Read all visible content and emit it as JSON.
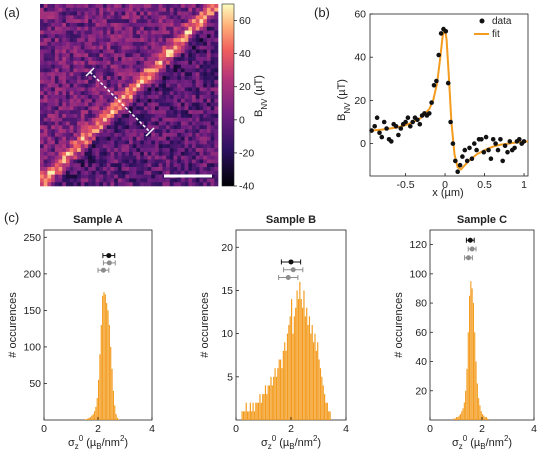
{
  "panels": {
    "a": {
      "label": "(a)",
      "colorbar": {
        "label_main": "B",
        "label_sub": "NV",
        "label_unit": " (µT)",
        "ticks": [
          "60",
          "40",
          "20",
          "0",
          "-20",
          "-40"
        ],
        "tick_values": [
          60,
          40,
          20,
          0,
          -20,
          -40
        ],
        "range": [
          -40,
          70
        ]
      }
    },
    "b": {
      "label": "(b)",
      "ylabel_main": "B",
      "ylabel_sub": "NV",
      "ylabel_unit": " (µT)",
      "xlabel": "x (µm)",
      "legend": {
        "data": "data",
        "fit": "fit"
      }
    },
    "c": {
      "label": "(c)",
      "titles": [
        "Sample A",
        "Sample B",
        "Sample C"
      ]
    }
  },
  "colors": {
    "orange": "#f39c1f",
    "data_black": "#111111",
    "gray": "#8c8c8c"
  },
  "chart_data": [
    {
      "id": "linecut",
      "type": "scatter",
      "xlim": [
        -0.95,
        1.05
      ],
      "ylim": [
        -15,
        60
      ],
      "xticks": [
        "-0.5",
        "0",
        "0.5",
        "1"
      ],
      "xtick_values": [
        -0.5,
        0,
        0.5,
        1
      ],
      "yticks": [
        "60",
        "40",
        "20",
        "0"
      ],
      "ytick_values": [
        60,
        40,
        20,
        0
      ],
      "series": [
        {
          "name": "data",
          "x": [
            -0.93,
            -0.89,
            -0.86,
            -0.83,
            -0.8,
            -0.77,
            -0.74,
            -0.71,
            -0.68,
            -0.65,
            -0.62,
            -0.59,
            -0.56,
            -0.53,
            -0.5,
            -0.47,
            -0.44,
            -0.41,
            -0.38,
            -0.35,
            -0.32,
            -0.29,
            -0.26,
            -0.23,
            -0.2,
            -0.17,
            -0.14,
            -0.11,
            -0.08,
            -0.05,
            -0.02,
            0.01,
            0.04,
            0.07,
            0.1,
            0.13,
            0.16,
            0.19,
            0.22,
            0.25,
            0.28,
            0.31,
            0.34,
            0.37,
            0.4,
            0.43,
            0.46,
            0.49,
            0.52,
            0.55,
            0.58,
            0.61,
            0.64,
            0.67,
            0.7,
            0.73,
            0.76,
            0.79,
            0.82,
            0.85,
            0.88,
            0.91,
            0.94,
            0.97,
            1.0
          ],
          "y": [
            6,
            8,
            12,
            5,
            3,
            10,
            7,
            2,
            1,
            9,
            8,
            4,
            7,
            9,
            10,
            12,
            8,
            10,
            12,
            11,
            9,
            13,
            14,
            13,
            14,
            19,
            27,
            29,
            41,
            51,
            53,
            52,
            28,
            10,
            0,
            -8,
            -13,
            -10,
            -6,
            -3,
            -8,
            -2,
            -7,
            0,
            -3,
            2,
            2,
            -4,
            3,
            -3,
            -7,
            2,
            0,
            -3,
            2,
            -8,
            -1,
            -4,
            1,
            -3,
            -2,
            1,
            2,
            0,
            1
          ]
        },
        {
          "name": "fit",
          "type": "line",
          "x": [
            -0.95,
            -0.8,
            -0.7,
            -0.6,
            -0.5,
            -0.4,
            -0.3,
            -0.2,
            -0.15,
            -0.1,
            -0.06,
            -0.03,
            0.0,
            0.02,
            0.05,
            0.08,
            0.12,
            0.16,
            0.2,
            0.25,
            0.3,
            0.4,
            0.5,
            0.6,
            0.7,
            0.8,
            0.9,
            1.05
          ],
          "y": [
            6,
            6.5,
            7,
            7.5,
            8.5,
            10,
            12,
            16,
            20,
            28,
            40,
            50,
            53,
            48,
            30,
            10,
            -5,
            -11,
            -12,
            -10,
            -8,
            -5,
            -3,
            -1.5,
            -0.5,
            0,
            0.5,
            1
          ]
        }
      ]
    },
    {
      "id": "histA",
      "type": "bar",
      "title": "Sample A",
      "xlabel_main": "σ",
      "xlabel_sub": "z",
      "xlabel_sup": "0",
      "xlabel_unit_a": " (µ",
      "xlabel_unit_sub": "B",
      "xlabel_unit_b": "/nm",
      "xlabel_unit_sup": "2",
      "xlabel_unit_c": ")",
      "ylabel": "# occurences",
      "xlim": [
        0,
        4
      ],
      "ylim": [
        0,
        260
      ],
      "xticks": [
        "0",
        "2",
        "4"
      ],
      "xtick_values": [
        0,
        2,
        4
      ],
      "yticks": [
        "250",
        "200",
        "150",
        "100",
        "50"
      ],
      "ytick_values": [
        250,
        200,
        150,
        100,
        50
      ],
      "bin_start": 1.5,
      "bin_width": 0.05,
      "values": [
        1,
        1,
        2,
        3,
        4,
        6,
        8,
        12,
        18,
        30,
        55,
        90,
        130,
        170,
        175,
        172,
        160,
        150,
        130,
        100,
        70,
        40,
        20,
        8,
        3,
        1
      ],
      "error_bars": [
        {
          "x": 2.4,
          "xerr": 0.22,
          "y": 225,
          "color": "#111111"
        },
        {
          "x": 2.42,
          "xerr": 0.22,
          "y": 215,
          "color": "#8c8c8c"
        },
        {
          "x": 2.2,
          "xerr": 0.2,
          "y": 205,
          "color": "#8c8c8c"
        }
      ]
    },
    {
      "id": "histB",
      "type": "bar",
      "title": "Sample B",
      "xlabel_main": "σ",
      "xlabel_sub": "z",
      "xlabel_sup": "0",
      "xlabel_unit_a": " (µ",
      "xlabel_unit_sub": "B",
      "xlabel_unit_b": "/nm",
      "xlabel_unit_sup": "2",
      "xlabel_unit_c": ")",
      "ylabel": "# occurences",
      "xlim": [
        0,
        4
      ],
      "ylim": [
        0,
        22
      ],
      "xticks": [
        "0",
        "2",
        "4"
      ],
      "xtick_values": [
        0,
        2,
        4
      ],
      "yticks": [
        "20",
        "15",
        "10",
        "5"
      ],
      "ytick_values": [
        20,
        15,
        10,
        5
      ],
      "bin_start": 0.2,
      "bin_width": 0.05,
      "values": [
        1,
        1,
        1,
        2,
        1,
        1,
        2,
        1,
        2,
        1,
        2,
        2,
        2,
        3,
        2,
        3,
        3,
        4,
        3,
        4,
        4,
        5,
        4,
        5,
        6,
        5,
        6,
        7,
        7,
        6,
        8,
        9,
        8,
        10,
        11,
        12,
        14,
        10,
        12,
        13,
        15,
        14,
        16,
        14,
        13,
        15,
        12,
        13,
        11,
        12,
        10,
        11,
        9,
        10,
        8,
        9,
        7,
        6,
        5,
        4,
        3,
        2,
        2,
        1,
        1
      ],
      "error_bars": [
        {
          "x": 2.0,
          "xerr": 0.35,
          "y": 18.3,
          "color": "#111111"
        },
        {
          "x": 2.08,
          "xerr": 0.35,
          "y": 17.4,
          "color": "#8c8c8c"
        },
        {
          "x": 1.9,
          "xerr": 0.35,
          "y": 16.5,
          "color": "#8c8c8c"
        }
      ]
    },
    {
      "id": "histC",
      "type": "bar",
      "title": "Sample C",
      "xlabel_main": "σ",
      "xlabel_sub": "z",
      "xlabel_sup": "0",
      "xlabel_unit_a": " (µ",
      "xlabel_unit_sub": "B",
      "xlabel_unit_b": "/nm",
      "xlabel_unit_sup": "2",
      "xlabel_unit_c": ")",
      "ylabel": "# occurences",
      "xlim": [
        0,
        4
      ],
      "ylim": [
        0,
        130
      ],
      "xticks": [
        "0",
        "2",
        "4"
      ],
      "xtick_values": [
        0,
        2,
        4
      ],
      "yticks": [
        "120",
        "100",
        "80",
        "60",
        "40",
        "20"
      ],
      "ytick_values": [
        120,
        100,
        80,
        60,
        40,
        20
      ],
      "bin_start": 0.9,
      "bin_width": 0.05,
      "values": [
        1,
        1,
        2,
        2,
        3,
        4,
        6,
        8,
        12,
        20,
        35,
        60,
        85,
        95,
        90,
        80,
        60,
        40,
        25,
        15,
        10,
        6,
        4,
        3,
        2,
        2,
        1
      ],
      "error_bars": [
        {
          "x": 1.55,
          "xerr": 0.15,
          "y": 123,
          "color": "#111111"
        },
        {
          "x": 1.62,
          "xerr": 0.15,
          "y": 117,
          "color": "#8c8c8c"
        },
        {
          "x": 1.48,
          "xerr": 0.15,
          "y": 111,
          "color": "#8c8c8c"
        }
      ]
    }
  ]
}
